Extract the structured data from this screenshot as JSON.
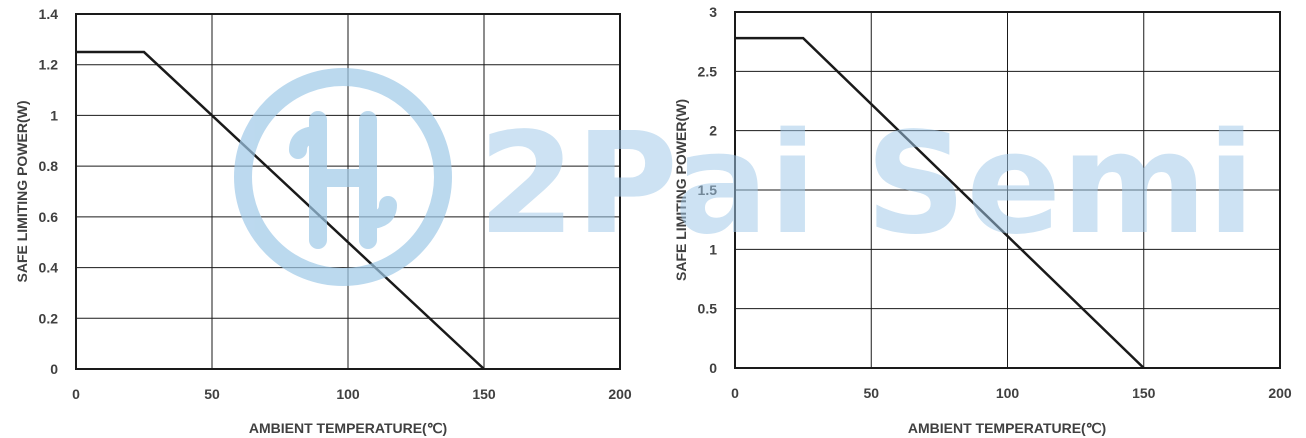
{
  "watermark": {
    "text": "2Pai Semi",
    "color": "#9fc9e8"
  },
  "chart_data": [
    {
      "type": "line",
      "title": "",
      "xlabel": "AMBIENT TEMPERATURE(℃)",
      "ylabel": "SAFE LIMITING POWER(W)",
      "xlim": [
        0,
        200
      ],
      "ylim": [
        0,
        1.4
      ],
      "xticks": [
        0,
        50,
        100,
        150,
        200
      ],
      "xtick_labels": [
        "0",
        "50",
        "100",
        "150",
        "200"
      ],
      "yticks": [
        0,
        0.2,
        0.4,
        0.6,
        0.8,
        1.0,
        1.2,
        1.4
      ],
      "ytick_labels": [
        "0",
        "0.2",
        "0.4",
        "0.6",
        "0.8",
        "1",
        "1.2",
        "1.4"
      ],
      "grid": true,
      "legend": "none",
      "series": [
        {
          "x": [
            0,
            25,
            150
          ],
          "y": [
            1.25,
            1.25,
            0
          ],
          "color": "#1a1a1a"
        }
      ]
    },
    {
      "type": "line",
      "title": "",
      "xlabel": "AMBIENT TEMPERATURE(℃)",
      "ylabel": "SAFE LIMITING POWER(W)",
      "xlim": [
        0,
        200
      ],
      "ylim": [
        0,
        3
      ],
      "xticks": [
        0,
        50,
        100,
        150,
        200
      ],
      "xtick_labels": [
        "0",
        "50",
        "100",
        "150",
        "200"
      ],
      "yticks": [
        0,
        0.5,
        1,
        1.5,
        2,
        2.5,
        3
      ],
      "ytick_labels": [
        "0",
        "0.5",
        "1",
        "1.5",
        "2",
        "2.5",
        "3"
      ],
      "grid": true,
      "legend": "none",
      "series": [
        {
          "x": [
            0,
            25,
            150
          ],
          "y": [
            2.78,
            2.78,
            0
          ],
          "color": "#1a1a1a"
        }
      ]
    }
  ]
}
